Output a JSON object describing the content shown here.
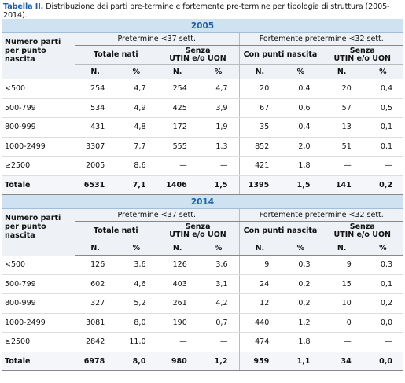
{
  "title": {
    "label": "Tabella II.",
    "text": "Distribuzione dei parti pre-termine e fortemente pre-termine per tipologia di struttura (2005-2014)."
  },
  "sections": [
    {
      "year": "2005",
      "row_label": "Numero parti per punto nascita",
      "groups": [
        "Pretermine <37 sett.",
        "Fortemente pretermine <32 sett."
      ],
      "subgroups": [
        "Totale nati",
        "Senza\nUTIN e/o UON",
        "Con punti nascita",
        "Senza\nUTIN e/o UON"
      ],
      "columns": [
        "N.",
        "%",
        "N.",
        "%",
        "N.",
        "%",
        "N.",
        "%"
      ],
      "rows": [
        {
          "label": "<500",
          "cells": [
            "254",
            "4,7",
            "254",
            "4,7",
            "20",
            "0,4",
            "20",
            "0,4"
          ]
        },
        {
          "label": "500-799",
          "cells": [
            "534",
            "4,9",
            "425",
            "3,9",
            "67",
            "0,6",
            "57",
            "0,5"
          ]
        },
        {
          "label": "800-999",
          "cells": [
            "431",
            "4,8",
            "172",
            "1,9",
            "35",
            "0,4",
            "13",
            "0,1"
          ]
        },
        {
          "label": "1000-2499",
          "cells": [
            "3307",
            "7,7",
            "555",
            "1,3",
            "852",
            "2,0",
            "51",
            "0,1"
          ]
        },
        {
          "label": "≥2500",
          "cells": [
            "2005",
            "8,6",
            "—",
            "—",
            "421",
            "1,8",
            "—",
            "—"
          ]
        },
        {
          "label": "Totale",
          "cells": [
            "6531",
            "7,1",
            "1406",
            "1,5",
            "1395",
            "1,5",
            "141",
            "0,2"
          ]
        }
      ]
    },
    {
      "year": "2014",
      "row_label": "Numero parti per punto nascita",
      "groups": [
        "Pretermine <37 sett.",
        "Fortemente pretermine <32 sett."
      ],
      "subgroups": [
        "Totale nati",
        "Senza\nUTIN e/o UON",
        "Con punti nascita",
        "Senza\nUTIN e/o UON"
      ],
      "columns": [
        "N.",
        "%",
        "N.",
        "%",
        "N.",
        "%",
        "N.",
        "%"
      ],
      "rows": [
        {
          "label": "<500",
          "cells": [
            "126",
            "3,6",
            "126",
            "3,6",
            "9",
            "0,3",
            "9",
            "0,3"
          ]
        },
        {
          "label": "500-799",
          "cells": [
            "602",
            "4,6",
            "403",
            "3,1",
            "24",
            "0,2",
            "15",
            "0,1"
          ]
        },
        {
          "label": "800-999",
          "cells": [
            "327",
            "5,2",
            "261",
            "4,2",
            "12",
            "0,2",
            "10",
            "0,2"
          ]
        },
        {
          "label": "1000-2499",
          "cells": [
            "3081",
            "8,0",
            "190",
            "0,7",
            "440",
            "1,2",
            "0",
            "0,0"
          ]
        },
        {
          "label": "≥2500",
          "cells": [
            "2842",
            "11,0",
            "—",
            "—",
            "474",
            "1,8",
            "—",
            "—"
          ]
        },
        {
          "label": "Totale",
          "cells": [
            "6978",
            "8,0",
            "980",
            "1,2",
            "959",
            "1,1",
            "34",
            "0,0"
          ]
        }
      ]
    }
  ]
}
